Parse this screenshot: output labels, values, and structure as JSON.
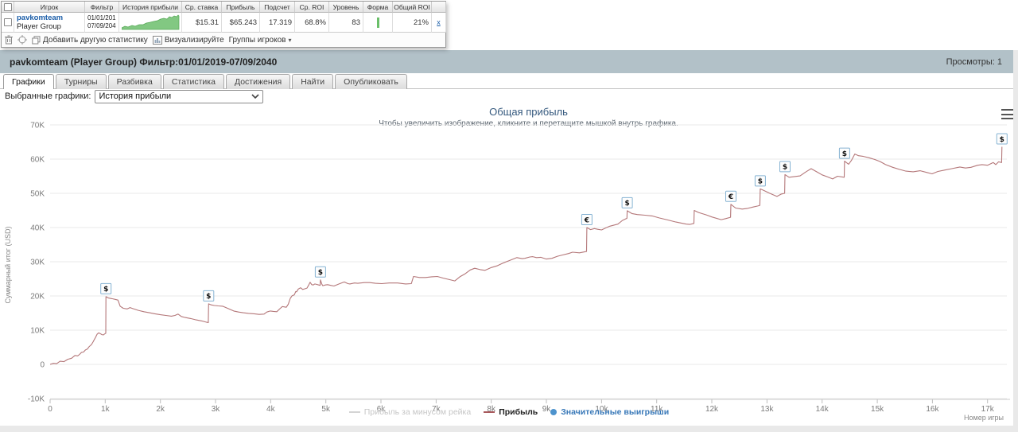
{
  "table": {
    "headers": [
      {
        "name": "player",
        "label": "Игрок"
      },
      {
        "name": "filter",
        "label": "Фильтр"
      },
      {
        "name": "profit-history",
        "label": "История прибыли"
      },
      {
        "name": "avg-stake",
        "label": "Ср. ставка"
      },
      {
        "name": "profit",
        "label": "Прибыль"
      },
      {
        "name": "count",
        "label": "Подсчет"
      },
      {
        "name": "avg-roi",
        "label": "Ср. ROI"
      },
      {
        "name": "level",
        "label": "Уровень"
      },
      {
        "name": "form",
        "label": "Форма"
      },
      {
        "name": "total-roi",
        "label": "Общий ROI"
      }
    ],
    "row": {
      "player": "pavkomteam",
      "player_sub": "Player Group",
      "filter_line1": "01/01/201",
      "filter_line2": "07/09/204",
      "avg_stake": "$15.31",
      "profit": "$65.243",
      "count": "17.319",
      "avg_roi": "68.8%",
      "level": "83",
      "total_roi": "21%",
      "remove_label": "x"
    },
    "sparkline_color": "#82c882"
  },
  "toolbar": {
    "add_stat": "Добавить другую статистику",
    "visualize": "Визуализируйте",
    "groups": "Группы игроков"
  },
  "icons": {
    "trash-icon": "svg-trash",
    "target-icon": "svg-target",
    "copy-icon": "svg-copy",
    "visualize-icon": "svg-chart",
    "dropdown-arrow-icon": "▾",
    "chevron-down-icon": "⌄",
    "menu-icon": "≡"
  },
  "header": {
    "title": "pavkomteam (Player Group) Фильтр:01/01/2019-07/09/2040",
    "views": "Просмотры: 1"
  },
  "tabs": [
    {
      "name": "tab-graphs",
      "label": "Графики",
      "active": true
    },
    {
      "name": "tab-tournaments",
      "label": "Турниры",
      "active": false
    },
    {
      "name": "tab-breakdown",
      "label": "Разбивка",
      "active": false
    },
    {
      "name": "tab-statistics",
      "label": "Статистика",
      "active": false
    },
    {
      "name": "tab-achievements",
      "label": "Достижения",
      "active": false
    },
    {
      "name": "tab-find",
      "label": "Найти",
      "active": false
    },
    {
      "name": "tab-publish",
      "label": "Опубликовать",
      "active": false
    }
  ],
  "controls": {
    "label": "Выбранные графики:",
    "selected": "История прибыли"
  },
  "colors": {
    "header_bar": "#b2c1c8",
    "line": "#b47779",
    "marker_border": "#86b3d3",
    "significant_win": "#4d93cd",
    "sparkline": "#82c882"
  },
  "chart_data": {
    "type": "line",
    "title": "Общая прибыль",
    "subtitle": "Чтобы увеличить изображение, кликните и перетащите мышкой внутрь графика.",
    "ylabel": "Суммарный итог (USD)",
    "xlabel": "Номер игры",
    "ylim": [
      -10000,
      70000
    ],
    "xlim": [
      0,
      17350
    ],
    "grid": "horizontal",
    "legend_position": "bottom-center",
    "y_ticks": [
      {
        "v": 70000,
        "l": "70K"
      },
      {
        "v": 60000,
        "l": "60K"
      },
      {
        "v": 50000,
        "l": "50K"
      },
      {
        "v": 40000,
        "l": "40K"
      },
      {
        "v": 30000,
        "l": "30K"
      },
      {
        "v": 20000,
        "l": "20K"
      },
      {
        "v": 10000,
        "l": "10K"
      },
      {
        "v": 0,
        "l": "0"
      },
      {
        "v": -10000,
        "l": "-10K"
      }
    ],
    "x_ticks": [
      {
        "v": 0,
        "l": "0"
      },
      {
        "v": 1000,
        "l": "1k"
      },
      {
        "v": 2000,
        "l": "2k"
      },
      {
        "v": 3000,
        "l": "3k"
      },
      {
        "v": 4000,
        "l": "4k"
      },
      {
        "v": 5000,
        "l": "5k"
      },
      {
        "v": 6000,
        "l": "6k"
      },
      {
        "v": 7000,
        "l": "7k"
      },
      {
        "v": 8000,
        "l": "8k"
      },
      {
        "v": 9000,
        "l": "9k"
      },
      {
        "v": 10000,
        "l": "10k"
      },
      {
        "v": 11000,
        "l": "11k"
      },
      {
        "v": 12000,
        "l": "12k"
      },
      {
        "v": 13000,
        "l": "13k"
      },
      {
        "v": 14000,
        "l": "14k"
      },
      {
        "v": 15000,
        "l": "15k"
      },
      {
        "v": 16000,
        "l": "16k"
      },
      {
        "v": 17000,
        "l": "17k"
      }
    ],
    "legend": [
      {
        "label": "Прибыль за минусом рейка",
        "type": "line",
        "color": "#d4d4d4",
        "text_color": "#c6c6c6",
        "disabled": true
      },
      {
        "label": "Прибыль",
        "type": "line",
        "color": "#a8595c",
        "text_color": "#222222",
        "disabled": false
      },
      {
        "label": "Значительные выигрыши",
        "type": "dot",
        "color": "#4d93cd",
        "text_color": "#3878b8",
        "disabled": false
      }
    ],
    "series": [
      {
        "name": "Прибыль",
        "color": "#b47779",
        "points": [
          [
            0,
            0
          ],
          [
            60,
            300
          ],
          [
            120,
            200
          ],
          [
            180,
            900
          ],
          [
            250,
            800
          ],
          [
            320,
            1500
          ],
          [
            390,
            1800
          ],
          [
            450,
            2600
          ],
          [
            500,
            2500
          ],
          [
            534,
            2900
          ],
          [
            570,
            3500
          ],
          [
            606,
            3600
          ],
          [
            640,
            4200
          ],
          [
            678,
            4500
          ],
          [
            710,
            5200
          ],
          [
            750,
            5800
          ],
          [
            780,
            6600
          ],
          [
            793,
            7000
          ],
          [
            820,
            7800
          ],
          [
            851,
            8800
          ],
          [
            880,
            9200
          ],
          [
            908,
            9000
          ],
          [
            940,
            8700
          ],
          [
            966,
            8600
          ],
          [
            990,
            8900
          ],
          [
            1009,
            9100
          ],
          [
            1012,
            19800
          ],
          [
            1060,
            19400
          ],
          [
            1120,
            19200
          ],
          [
            1180,
            19000
          ],
          [
            1230,
            18800
          ],
          [
            1270,
            17000
          ],
          [
            1327,
            16400
          ],
          [
            1399,
            16200
          ],
          [
            1450,
            16600
          ],
          [
            1500,
            16300
          ],
          [
            1600,
            15800
          ],
          [
            1700,
            15400
          ],
          [
            1800,
            15100
          ],
          [
            1900,
            14800
          ],
          [
            2000,
            14500
          ],
          [
            2100,
            14300
          ],
          [
            2200,
            14100
          ],
          [
            2264,
            14300
          ],
          [
            2320,
            14700
          ],
          [
            2380,
            14000
          ],
          [
            2450,
            13700
          ],
          [
            2550,
            13400
          ],
          [
            2650,
            13000
          ],
          [
            2750,
            12700
          ],
          [
            2841,
            12300
          ],
          [
            2869,
            12200
          ],
          [
            2875,
            17700
          ],
          [
            2920,
            17400
          ],
          [
            2980,
            17200
          ],
          [
            3050,
            17100
          ],
          [
            3129,
            17000
          ],
          [
            3230,
            16300
          ],
          [
            3330,
            15600
          ],
          [
            3417,
            15300
          ],
          [
            3500,
            15100
          ],
          [
            3600,
            14900
          ],
          [
            3700,
            14800
          ],
          [
            3790,
            14600
          ],
          [
            3879,
            14700
          ],
          [
            3930,
            15300
          ],
          [
            3994,
            15600
          ],
          [
            4050,
            15500
          ],
          [
            4110,
            15400
          ],
          [
            4170,
            16300
          ],
          [
            4211,
            16900
          ],
          [
            4250,
            16800
          ],
          [
            4283,
            16700
          ],
          [
            4320,
            17600
          ],
          [
            4355,
            19300
          ],
          [
            4390,
            20100
          ],
          [
            4427,
            20300
          ],
          [
            4455,
            21300
          ],
          [
            4470,
            21200
          ],
          [
            4500,
            22000
          ],
          [
            4542,
            22400
          ],
          [
            4580,
            21900
          ],
          [
            4620,
            22100
          ],
          [
            4658,
            22300
          ],
          [
            4690,
            23200
          ],
          [
            4715,
            24000
          ],
          [
            4745,
            23300
          ],
          [
            4773,
            23200
          ],
          [
            4800,
            23500
          ],
          [
            4830,
            23400
          ],
          [
            4870,
            23200
          ],
          [
            4896,
            23100
          ],
          [
            4902,
            24700
          ],
          [
            4930,
            23400
          ],
          [
            4946,
            23000
          ],
          [
            4990,
            23200
          ],
          [
            5032,
            23300
          ],
          [
            5090,
            23100
          ],
          [
            5147,
            22900
          ],
          [
            5240,
            23500
          ],
          [
            5335,
            24100
          ],
          [
            5400,
            23600
          ],
          [
            5436,
            23500
          ],
          [
            5520,
            23800
          ],
          [
            5580,
            23700
          ],
          [
            5700,
            23900
          ],
          [
            5796,
            23900
          ],
          [
            5900,
            23700
          ],
          [
            6013,
            23600
          ],
          [
            6150,
            23800
          ],
          [
            6301,
            23800
          ],
          [
            6450,
            23500
          ],
          [
            6550,
            23600
          ],
          [
            6590,
            25700
          ],
          [
            6700,
            25400
          ],
          [
            6806,
            25400
          ],
          [
            6920,
            25600
          ],
          [
            7022,
            25700
          ],
          [
            7130,
            25200
          ],
          [
            7238,
            24800
          ],
          [
            7339,
            24400
          ],
          [
            7430,
            25600
          ],
          [
            7527,
            26500
          ],
          [
            7620,
            27600
          ],
          [
            7700,
            28100
          ],
          [
            7800,
            27700
          ],
          [
            7887,
            27500
          ],
          [
            8000,
            28300
          ],
          [
            8103,
            28800
          ],
          [
            8210,
            29600
          ],
          [
            8320,
            30300
          ],
          [
            8464,
            31200
          ],
          [
            8560,
            30900
          ],
          [
            8608,
            31000
          ],
          [
            8700,
            31400
          ],
          [
            8752,
            31500
          ],
          [
            8820,
            31200
          ],
          [
            8897,
            31300
          ],
          [
            9000,
            30800
          ],
          [
            9100,
            31000
          ],
          [
            9200,
            31600
          ],
          [
            9300,
            32000
          ],
          [
            9400,
            32400
          ],
          [
            9474,
            32800
          ],
          [
            9600,
            32600
          ],
          [
            9728,
            33000
          ],
          [
            9733,
            40000
          ],
          [
            9800,
            39400
          ],
          [
            9870,
            39700
          ],
          [
            9930,
            39500
          ],
          [
            10000,
            39300
          ],
          [
            10080,
            39900
          ],
          [
            10150,
            40400
          ],
          [
            10296,
            41000
          ],
          [
            10380,
            42100
          ],
          [
            10460,
            42700
          ],
          [
            10465,
            44900
          ],
          [
            10550,
            44100
          ],
          [
            10650,
            43800
          ],
          [
            10790,
            43600
          ],
          [
            10916,
            43400
          ],
          [
            11050,
            42800
          ],
          [
            11180,
            42300
          ],
          [
            11350,
            41600
          ],
          [
            11536,
            41000
          ],
          [
            11600,
            40900
          ],
          [
            11675,
            41200
          ],
          [
            11680,
            45000
          ],
          [
            11760,
            44400
          ],
          [
            11900,
            43700
          ],
          [
            12000,
            43100
          ],
          [
            12170,
            42300
          ],
          [
            12250,
            42600
          ],
          [
            12340,
            43000
          ],
          [
            12345,
            46800
          ],
          [
            12430,
            45700
          ],
          [
            12550,
            45400
          ],
          [
            12650,
            45600
          ],
          [
            12750,
            46000
          ],
          [
            12834,
            46300
          ],
          [
            12870,
            46500
          ],
          [
            12877,
            51300
          ],
          [
            12950,
            50800
          ],
          [
            13050,
            50000
          ],
          [
            13180,
            49100
          ],
          [
            13260,
            49800
          ],
          [
            13320,
            50000
          ],
          [
            13326,
            55500
          ],
          [
            13400,
            54700
          ],
          [
            13500,
            54900
          ],
          [
            13600,
            55100
          ],
          [
            13700,
            56200
          ],
          [
            13800,
            57200
          ],
          [
            13900,
            56300
          ],
          [
            14000,
            55400
          ],
          [
            14100,
            54800
          ],
          [
            14190,
            54200
          ],
          [
            14280,
            55000
          ],
          [
            14400,
            54700
          ],
          [
            14406,
            59400
          ],
          [
            14480,
            58500
          ],
          [
            14530,
            59600
          ],
          [
            14593,
            61500
          ],
          [
            14660,
            61000
          ],
          [
            14750,
            60800
          ],
          [
            14850,
            60400
          ],
          [
            14950,
            59900
          ],
          [
            15050,
            59300
          ],
          [
            15150,
            58400
          ],
          [
            15280,
            57600
          ],
          [
            15400,
            57000
          ],
          [
            15520,
            56500
          ],
          [
            15650,
            56300
          ],
          [
            15780,
            56600
          ],
          [
            15900,
            56100
          ],
          [
            15993,
            55700
          ],
          [
            16100,
            56400
          ],
          [
            16220,
            56800
          ],
          [
            16350,
            57200
          ],
          [
            16497,
            57700
          ],
          [
            16600,
            57400
          ],
          [
            16700,
            57600
          ],
          [
            16820,
            58200
          ],
          [
            16900,
            58400
          ],
          [
            17000,
            58200
          ],
          [
            17103,
            59000
          ],
          [
            17150,
            58400
          ],
          [
            17200,
            59200
          ],
          [
            17255,
            59000
          ],
          [
            17260,
            63600
          ]
        ]
      }
    ],
    "markers": [
      {
        "x": 1012,
        "y": 19800,
        "symbol": "$"
      },
      {
        "x": 2875,
        "y": 17700,
        "symbol": "$"
      },
      {
        "x": 4902,
        "y": 24700,
        "symbol": "$"
      },
      {
        "x": 9733,
        "y": 40000,
        "symbol": "€"
      },
      {
        "x": 10465,
        "y": 44900,
        "symbol": "$"
      },
      {
        "x": 12345,
        "y": 46800,
        "symbol": "€"
      },
      {
        "x": 12877,
        "y": 51300,
        "symbol": "$"
      },
      {
        "x": 13326,
        "y": 55500,
        "symbol": "$"
      },
      {
        "x": 14406,
        "y": 59400,
        "symbol": "$"
      },
      {
        "x": 17260,
        "y": 63600,
        "symbol": "$"
      }
    ]
  }
}
